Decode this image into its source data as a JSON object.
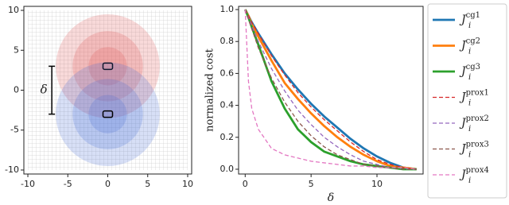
{
  "chart_data": [
    {
      "type": "map",
      "xlim": [
        -10.5,
        10.5
      ],
      "ylim": [
        -10.5,
        10.5
      ],
      "xticks": [
        -10,
        -5,
        0,
        5,
        10
      ],
      "yticks": [
        -10,
        -5,
        0,
        5,
        10
      ],
      "annotation": "δ",
      "agents": [
        {
          "x": 0,
          "y": 3,
          "color": "#e05050",
          "radii": [
            2.4,
            4.4,
            6.5
          ]
        },
        {
          "x": 0,
          "y": -3,
          "color": "#4a6fd8",
          "radii": [
            2.4,
            4.4,
            6.5
          ]
        }
      ]
    },
    {
      "type": "line",
      "xlabel": "δ",
      "ylabel": "normalized cost",
      "xlim": [
        -0.5,
        13.5
      ],
      "ylim": [
        -0.03,
        1.02
      ],
      "xticks": [
        0,
        5,
        10
      ],
      "yticks": [
        {
          "value": 0,
          "label": "0.0"
        },
        {
          "value": 0.2,
          "label": "0.2"
        },
        {
          "value": 0.4,
          "label": "0.4"
        },
        {
          "value": 0.6,
          "label": "0.6"
        },
        {
          "value": 0.8,
          "label": "0.8"
        },
        {
          "value": 1,
          "label": "1.0"
        }
      ],
      "legend_symbol": "J",
      "legend_subscript": "i",
      "x": [
        0,
        0.25,
        0.5,
        1,
        2,
        3,
        4,
        5,
        6,
        7,
        8,
        9,
        10,
        11,
        12,
        13
      ],
      "series": [
        {
          "name": "cg1",
          "color": "#1f77b4",
          "style": "solid",
          "values": [
            1.0,
            0.96,
            0.92,
            0.85,
            0.72,
            0.6,
            0.5,
            0.41,
            0.33,
            0.26,
            0.19,
            0.13,
            0.08,
            0.04,
            0.01,
            0.0
          ]
        },
        {
          "name": "cg2",
          "color": "#ff7f0e",
          "style": "solid",
          "values": [
            1.0,
            0.96,
            0.91,
            0.83,
            0.68,
            0.54,
            0.44,
            0.35,
            0.27,
            0.2,
            0.14,
            0.09,
            0.05,
            0.02,
            0.01,
            0.0
          ]
        },
        {
          "name": "cg3",
          "color": "#2ca02c",
          "style": "solid",
          "values": [
            1.0,
            0.95,
            0.89,
            0.78,
            0.55,
            0.38,
            0.25,
            0.17,
            0.11,
            0.08,
            0.05,
            0.03,
            0.02,
            0.01,
            0.0,
            0.0
          ]
        },
        {
          "name": "prox1",
          "color": "#d62728",
          "style": "dashed",
          "values": [
            1.0,
            0.96,
            0.92,
            0.85,
            0.71,
            0.59,
            0.48,
            0.39,
            0.31,
            0.24,
            0.17,
            0.11,
            0.06,
            0.03,
            0.01,
            0.0
          ]
        },
        {
          "name": "prox2",
          "color": "#9467bd",
          "style": "dashed",
          "values": [
            1.0,
            0.95,
            0.9,
            0.8,
            0.63,
            0.49,
            0.37,
            0.28,
            0.2,
            0.14,
            0.09,
            0.05,
            0.03,
            0.01,
            0.0,
            0.0
          ]
        },
        {
          "name": "prox3",
          "color": "#8c564b",
          "style": "dashed",
          "values": [
            1.0,
            0.94,
            0.88,
            0.76,
            0.57,
            0.42,
            0.3,
            0.21,
            0.14,
            0.09,
            0.06,
            0.03,
            0.02,
            0.01,
            0.0,
            0.0
          ]
        },
        {
          "name": "prox4",
          "color": "#e377c2",
          "style": "dashed",
          "values": [
            1.0,
            0.55,
            0.38,
            0.25,
            0.13,
            0.09,
            0.07,
            0.05,
            0.04,
            0.03,
            0.02,
            0.02,
            0.01,
            0.01,
            0.01,
            0.0
          ]
        }
      ]
    }
  ]
}
